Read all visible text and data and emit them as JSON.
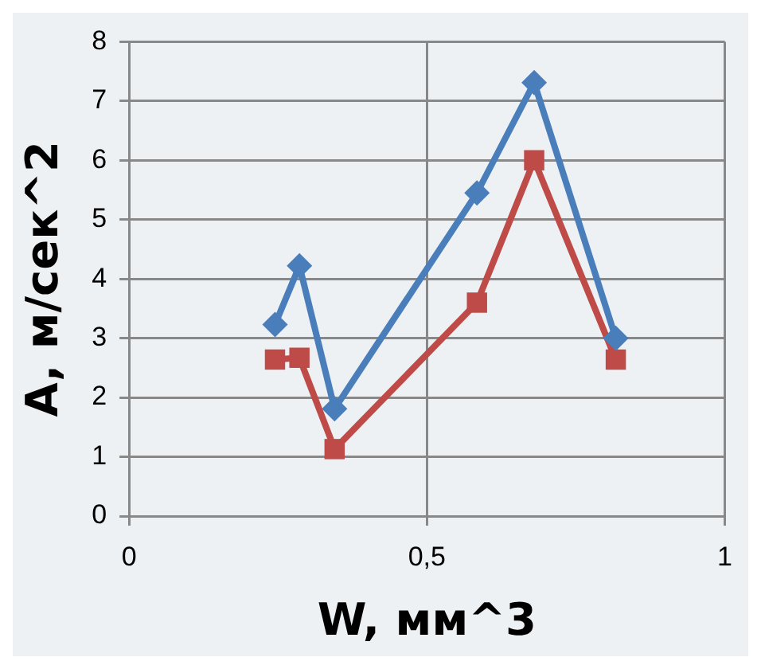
{
  "chart_data": {
    "type": "line",
    "xlabel": "W, мм^3",
    "ylabel": "A, м/сек^2",
    "x": [
      0.245,
      0.286,
      0.345,
      0.584,
      0.68,
      0.817
    ],
    "series": [
      {
        "color": "#4a7ebb",
        "marker": "diamond",
        "values": [
          3.23,
          4.22,
          1.81,
          5.45,
          7.31,
          3.0
        ]
      },
      {
        "color": "#be4b48",
        "marker": "square",
        "values": [
          2.64,
          2.67,
          1.13,
          3.6,
          6.0,
          2.64
        ]
      }
    ],
    "xlim": [
      0,
      1
    ],
    "xticks": [
      0,
      {
        "value": 0.5,
        "label": "0,5"
      },
      1
    ],
    "ylim": [
      0,
      8
    ],
    "yticks": [
      0,
      1,
      2,
      3,
      4,
      5,
      6,
      7,
      8
    ],
    "grid": true
  }
}
